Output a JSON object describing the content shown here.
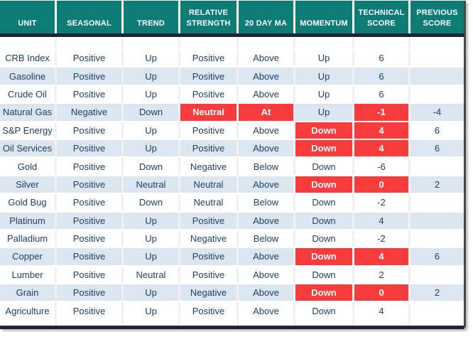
{
  "table": {
    "columns": [
      "UNIT",
      "SEASONAL",
      "TREND",
      "RELATIVE STRENGTH",
      "20 DAY MA",
      "MOMENTUM",
      "TECHNICAL SCORE",
      "PREVIOUS SCORE"
    ],
    "rows": [
      {
        "unit": "CRB Index",
        "values": [
          "Positive",
          "Up",
          "Positive",
          "Above",
          "Up",
          "6",
          ""
        ],
        "highlights": []
      },
      {
        "unit": "Gasoline",
        "values": [
          "Positive",
          "Up",
          "Positive",
          "Above",
          "Up",
          "6",
          ""
        ],
        "highlights": []
      },
      {
        "unit": "Crude Oil",
        "values": [
          "Positive",
          "Up",
          "Positive",
          "Above",
          "Up",
          "6",
          ""
        ],
        "highlights": []
      },
      {
        "unit": "Natural Gas",
        "values": [
          "Negative",
          "Down",
          "Neutral",
          "At",
          "Up",
          "-1",
          "-4"
        ],
        "highlights": [
          2,
          3,
          5
        ]
      },
      {
        "unit": "S&P Energy",
        "values": [
          "Positive",
          "Up",
          "Positive",
          "Above",
          "Down",
          "4",
          "6"
        ],
        "highlights": [
          4,
          5
        ]
      },
      {
        "unit": "Oil Services",
        "values": [
          "Positive",
          "Up",
          "Positive",
          "Above",
          "Down",
          "4",
          "6"
        ],
        "highlights": [
          4,
          5
        ]
      },
      {
        "unit": "Gold",
        "values": [
          "Positive",
          "Down",
          "Negative",
          "Below",
          "Down",
          "-6",
          ""
        ],
        "highlights": []
      },
      {
        "unit": "Silver",
        "values": [
          "Positive",
          "Neutral",
          "Neutral",
          "Above",
          "Down",
          "0",
          "2"
        ],
        "highlights": [
          4,
          5
        ]
      },
      {
        "unit": "Gold Bug",
        "values": [
          "Positive",
          "Down",
          "Neutral",
          "Below",
          "Down",
          "-2",
          ""
        ],
        "highlights": []
      },
      {
        "unit": "Platinum",
        "values": [
          "Positive",
          "Up",
          "Positive",
          "Above",
          "Down",
          "4",
          ""
        ],
        "highlights": []
      },
      {
        "unit": "Palladium",
        "values": [
          "Positive",
          "Up",
          "Negative",
          "Below",
          "Down",
          "-2",
          ""
        ],
        "highlights": []
      },
      {
        "unit": "Copper",
        "values": [
          "Positive",
          "Up",
          "Positive",
          "Above",
          "Down",
          "4",
          "6"
        ],
        "highlights": [
          4,
          5
        ]
      },
      {
        "unit": "Lumber",
        "values": [
          "Positive",
          "Neutral",
          "Positive",
          "Above",
          "Down",
          "2",
          ""
        ],
        "highlights": []
      },
      {
        "unit": "Grain",
        "values": [
          "Positive",
          "Up",
          "Negative",
          "Above",
          "Down",
          "0",
          "2"
        ],
        "highlights": [
          4,
          5
        ]
      },
      {
        "unit": "Agriculture",
        "values": [
          "Positive",
          "Up",
          "Positive",
          "Above",
          "Down",
          "4",
          ""
        ],
        "highlights": []
      }
    ],
    "colors": {
      "header_bg": "#0d7c74",
      "header_text": "#ffffff",
      "divider": "#1b2638",
      "row_alt_bg": "#dce6f1",
      "row_bg": "#ffffff",
      "cell_text": "#1d4066",
      "highlight_bg": "#f93b3d",
      "highlight_text": "#ffffff"
    }
  }
}
